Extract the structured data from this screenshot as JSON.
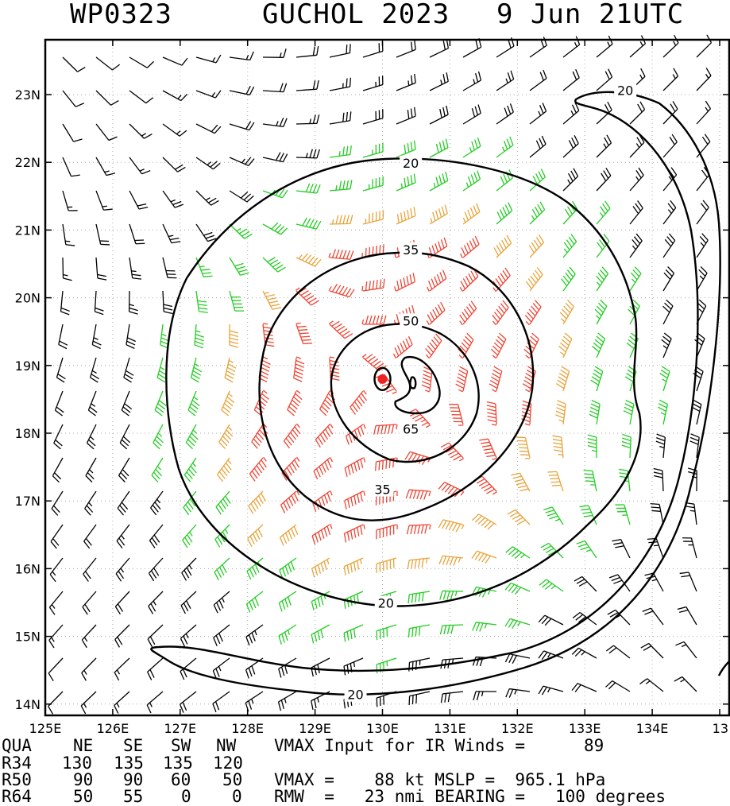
{
  "header": {
    "storm_id": "WP0323",
    "storm_name": "GUCHOL 2023",
    "valid_time": "9 Jun 21UTC"
  },
  "chart_data": {
    "type": "wind_field_map",
    "x_ticks": [
      "125E",
      "126E",
      "127E",
      "128E",
      "129E",
      "130E",
      "131E",
      "132E",
      "133E",
      "134E",
      "13"
    ],
    "y_ticks": [
      "23N",
      "22N",
      "21N",
      "20N",
      "19N",
      "18N",
      "17N",
      "16N",
      "15N",
      "14N"
    ],
    "lon_range": [
      125,
      135.4
    ],
    "lat_range": [
      13.8,
      23.8
    ],
    "center": {
      "lon": 130.0,
      "lat": 18.8
    },
    "grid": true,
    "contour_labels": [
      {
        "text": "20",
        "lon": 133.6,
        "lat": 23.05
      },
      {
        "text": "20",
        "lon": 130.42,
        "lat": 21.98
      },
      {
        "text": "35",
        "lon": 130.42,
        "lat": 20.7
      },
      {
        "text": "50",
        "lon": 130.42,
        "lat": 19.65
      },
      {
        "text": "65",
        "lon": 130.42,
        "lat": 18.05
      },
      {
        "text": "35",
        "lon": 130.0,
        "lat": 17.16
      },
      {
        "text": "20",
        "lon": 130.05,
        "lat": 15.48
      },
      {
        "text": "20",
        "lon": 129.6,
        "lat": 14.13
      }
    ],
    "colors": {
      "below_34kt": "#000000",
      "34_to_50kt": "#22cc22",
      "50_to_64kt": "#e8a33a",
      "above_64kt": "#ee4433",
      "eye": "#ee2222"
    }
  },
  "table": {
    "headers": [
      "QUA",
      "NE",
      "SE",
      "SW",
      "NW"
    ],
    "rows": [
      [
        "R34",
        "130",
        "135",
        "135",
        "120"
      ],
      [
        "R50",
        "90",
        "90",
        "60",
        "50"
      ],
      [
        "R64",
        "50",
        "55",
        "0",
        "0"
      ]
    ],
    "vmax_input_text": "VMAX Input for IR Winds =",
    "vmax_input_value": "89",
    "vmax_line": "VMAX =    88 kt MSLP =  965.1 hPa",
    "rmw_line": "RMW  =   23 nmi BEARING =   100 degrees"
  }
}
